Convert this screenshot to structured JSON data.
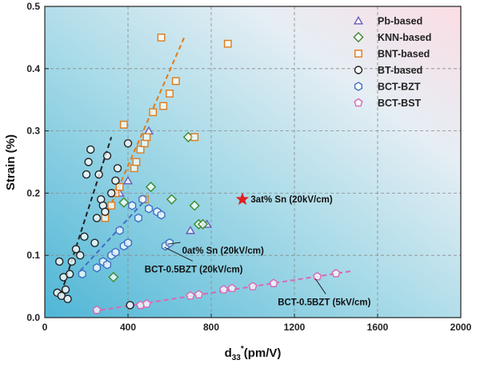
{
  "chart_data": {
    "type": "scatter",
    "title": "",
    "xlabel": "d",
    "xlabel_sub": "33",
    "xlabel_sup": "*",
    "xlabel_tail": "(pm/V)",
    "ylabel": "Strain (%)",
    "xlim": [
      0,
      2000
    ],
    "ylim": [
      0,
      0.5
    ],
    "xticks": [
      0,
      400,
      800,
      1200,
      1600,
      2000
    ],
    "yticks": [
      0.0,
      0.1,
      0.2,
      0.3,
      0.4,
      0.5
    ],
    "ytick_labels": [
      "0.0",
      "0.1",
      "0.2",
      "0.3",
      "0.4",
      "0.5"
    ],
    "grid": true,
    "legend_position": "top-right",
    "series": [
      {
        "name": "Pb-based",
        "marker": "triangle",
        "color": "#6b5bb8",
        "points": [
          [
            360,
            0.2
          ],
          [
            400,
            0.22
          ],
          [
            500,
            0.3
          ],
          [
            700,
            0.14
          ],
          [
            780,
            0.15
          ]
        ]
      },
      {
        "name": "KNN-based",
        "marker": "diamond",
        "color": "#3a8a2e",
        "points": [
          [
            330,
            0.065
          ],
          [
            380,
            0.185
          ],
          [
            510,
            0.21
          ],
          [
            610,
            0.19
          ],
          [
            690,
            0.29
          ],
          [
            720,
            0.18
          ],
          [
            740,
            0.15
          ],
          [
            760,
            0.15
          ]
        ]
      },
      {
        "name": "BNT-based",
        "marker": "square",
        "color": "#e07b1a",
        "points": [
          [
            290,
            0.16
          ],
          [
            320,
            0.18
          ],
          [
            340,
            0.2
          ],
          [
            360,
            0.21
          ],
          [
            380,
            0.31
          ],
          [
            430,
            0.24
          ],
          [
            440,
            0.25
          ],
          [
            460,
            0.27
          ],
          [
            480,
            0.28
          ],
          [
            490,
            0.29
          ],
          [
            520,
            0.33
          ],
          [
            560,
            0.45
          ],
          [
            570,
            0.34
          ],
          [
            600,
            0.36
          ],
          [
            630,
            0.38
          ],
          [
            480,
            0.19
          ],
          [
            720,
            0.29
          ],
          [
            880,
            0.44
          ]
        ]
      },
      {
        "name": "BT-based",
        "marker": "circle",
        "color": "#222222",
        "points": [
          [
            60,
            0.04
          ],
          [
            70,
            0.09
          ],
          [
            80,
            0.035
          ],
          [
            90,
            0.065
          ],
          [
            100,
            0.045
          ],
          [
            110,
            0.03
          ],
          [
            120,
            0.07
          ],
          [
            130,
            0.09
          ],
          [
            150,
            0.11
          ],
          [
            170,
            0.1
          ],
          [
            190,
            0.13
          ],
          [
            200,
            0.23
          ],
          [
            210,
            0.25
          ],
          [
            220,
            0.27
          ],
          [
            240,
            0.12
          ],
          [
            250,
            0.16
          ],
          [
            260,
            0.23
          ],
          [
            270,
            0.19
          ],
          [
            280,
            0.18
          ],
          [
            290,
            0.17
          ],
          [
            300,
            0.26
          ],
          [
            320,
            0.2
          ],
          [
            340,
            0.22
          ],
          [
            350,
            0.24
          ],
          [
            400,
            0.28
          ],
          [
            410,
            0.02
          ]
        ]
      },
      {
        "name": "BCT-BZT",
        "marker": "hexagon",
        "color": "#3f6fc4",
        "points": [
          [
            180,
            0.07
          ],
          [
            250,
            0.08
          ],
          [
            280,
            0.09
          ],
          [
            300,
            0.085
          ],
          [
            320,
            0.1
          ],
          [
            340,
            0.105
          ],
          [
            360,
            0.14
          ],
          [
            380,
            0.115
          ],
          [
            400,
            0.12
          ],
          [
            420,
            0.18
          ],
          [
            450,
            0.16
          ],
          [
            470,
            0.19
          ],
          [
            500,
            0.175
          ],
          [
            540,
            0.17
          ],
          [
            560,
            0.165
          ],
          [
            580,
            0.115
          ],
          [
            600,
            0.12
          ]
        ]
      },
      {
        "name": "BCT-BST",
        "marker": "pentagon",
        "color": "#d868b4",
        "points": [
          [
            250,
            0.012
          ],
          [
            460,
            0.02
          ],
          [
            490,
            0.022
          ],
          [
            700,
            0.035
          ],
          [
            740,
            0.037
          ],
          [
            860,
            0.045
          ],
          [
            900,
            0.047
          ],
          [
            1000,
            0.05
          ],
          [
            1100,
            0.055
          ],
          [
            1310,
            0.066
          ],
          [
            1400,
            0.071
          ]
        ]
      }
    ],
    "highlight": {
      "marker": "star",
      "color": "#e02020",
      "point": [
        950,
        0.19
      ]
    },
    "trend_lines": [
      {
        "color": "#222222",
        "from": [
          80,
          0.04
        ],
        "to": [
          320,
          0.29
        ]
      },
      {
        "color": "#e07b1a",
        "from": [
          290,
          0.16
        ],
        "to": [
          670,
          0.45
        ]
      },
      {
        "color": "#3f6fc4",
        "from": [
          170,
          0.075
        ],
        "to": [
          500,
          0.195
        ]
      },
      {
        "color": "#d868b4",
        "from": [
          230,
          0.01
        ],
        "to": [
          1480,
          0.075
        ]
      }
    ],
    "annotations": [
      {
        "text": "3at% Sn (20kV/cm)",
        "anchor": [
          990,
          0.19
        ]
      },
      {
        "text": "0at% Sn (20kV/cm)",
        "anchor": [
          660,
          0.108
        ],
        "arrow_to": [
          590,
          0.118
        ]
      },
      {
        "text": "BCT-0.5BZT (20kV/cm)",
        "anchor": [
          480,
          0.078
        ],
        "arrow_to": [
          575,
          0.113
        ]
      },
      {
        "text": "BCT-0.5BZT (5kV/cm)",
        "anchor": [
          1120,
          0.025
        ],
        "arrow_to": [
          1300,
          0.063
        ]
      }
    ]
  }
}
